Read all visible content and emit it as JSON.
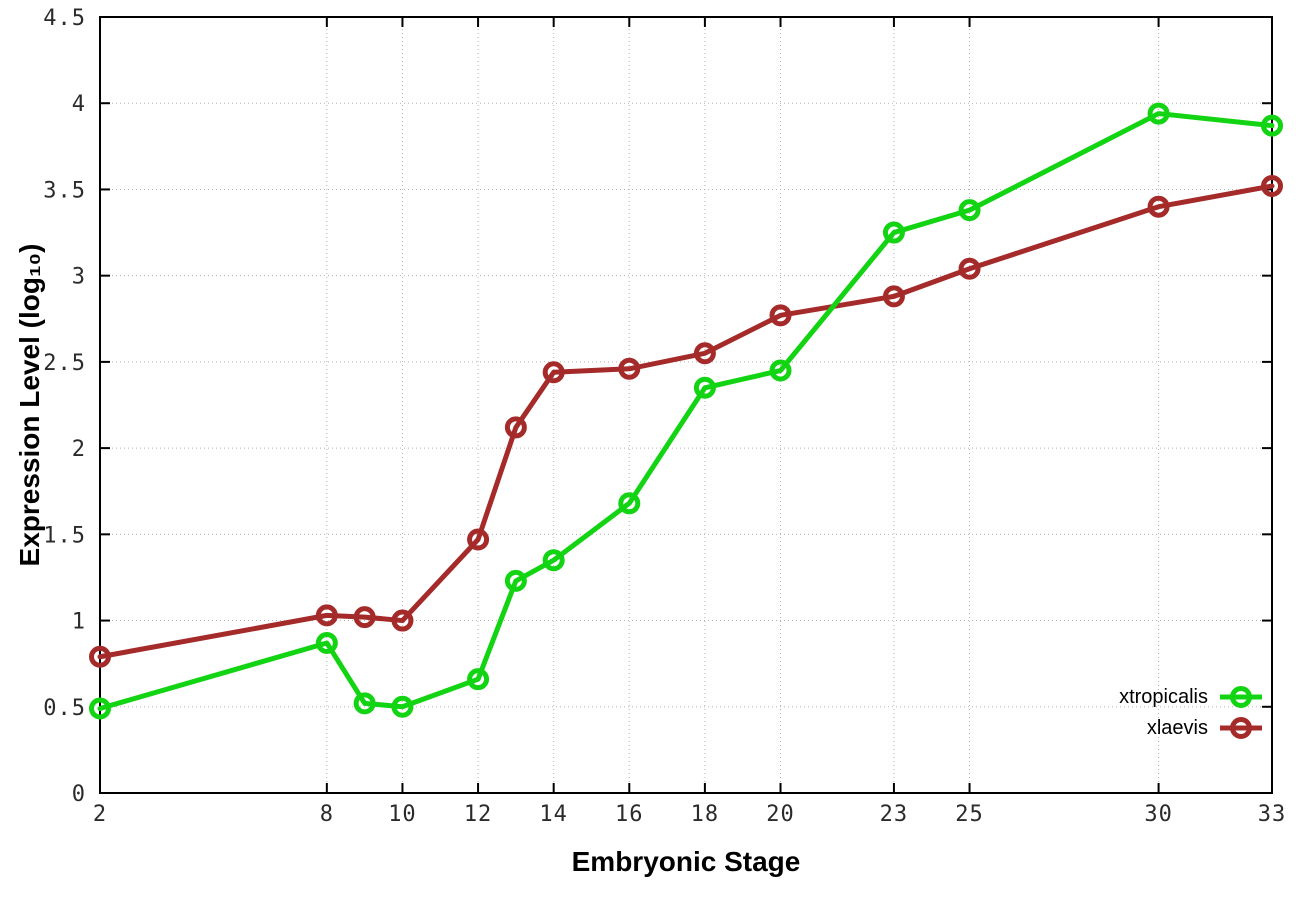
{
  "chart_data": {
    "type": "line",
    "title": "",
    "xlabel": "Embryonic Stage",
    "ylabel": "Expression Level (log₁₀)",
    "x": [
      2,
      8,
      9,
      10,
      12,
      13,
      14,
      16,
      18,
      20,
      23,
      25,
      30,
      33
    ],
    "series": [
      {
        "name": "xtropicalis",
        "color": "#12d412",
        "marker": "open-circle",
        "values": [
          0.49,
          0.87,
          0.52,
          0.5,
          0.66,
          1.23,
          1.35,
          1.68,
          2.35,
          2.45,
          3.25,
          3.38,
          3.94,
          3.87
        ]
      },
      {
        "name": "xlaevis",
        "color": "#a52a2a",
        "marker": "open-circle",
        "values": [
          0.79,
          1.03,
          1.02,
          1.0,
          1.47,
          2.12,
          2.44,
          2.46,
          2.55,
          2.77,
          2.88,
          3.04,
          3.4,
          3.52
        ]
      }
    ],
    "xlim": [
      2,
      33
    ],
    "ylim": [
      0,
      4.5
    ],
    "xtick_values": [
      2,
      8,
      10,
      12,
      14,
      16,
      18,
      20,
      23,
      25,
      30,
      33
    ],
    "xtick_labels": [
      "2",
      "8",
      "10",
      "12",
      "14",
      "16",
      "18",
      "20",
      "23",
      "25",
      "30",
      "33"
    ],
    "ytick_values": [
      0,
      0.5,
      1,
      1.5,
      2,
      2.5,
      3,
      3.5,
      4,
      4.5
    ],
    "ytick_labels": [
      "0",
      "0.5",
      "1",
      "1.5",
      "2",
      "2.5",
      "3",
      "3.5",
      "4",
      "4.5"
    ],
    "grid": true,
    "legend_position": "inside-bottom-right"
  }
}
